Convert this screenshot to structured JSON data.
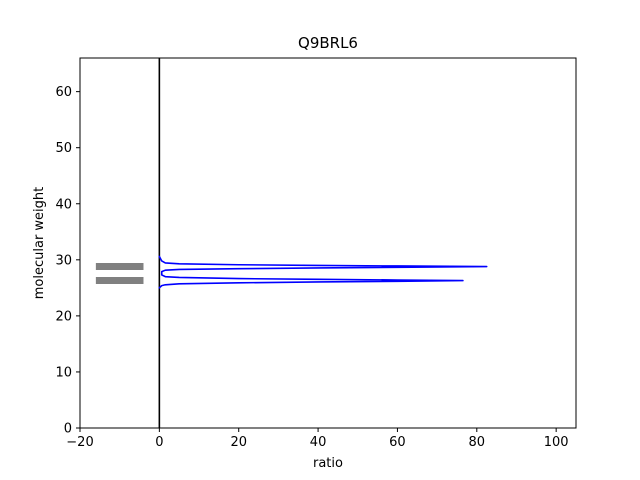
{
  "chart_data": {
    "type": "line",
    "title": "Q9BRL6",
    "xlabel": "ratio",
    "ylabel": "molecular weight",
    "xlim": [
      -20,
      105
    ],
    "ylim": [
      0,
      66
    ],
    "x_ticks": [
      -20,
      0,
      20,
      40,
      60,
      80,
      100
    ],
    "x_tick_labels": [
      "−20",
      "0",
      "20",
      "40",
      "60",
      "80",
      "100"
    ],
    "y_ticks": [
      0,
      10,
      20,
      30,
      40,
      50,
      60
    ],
    "y_tick_labels": [
      "0",
      "10",
      "20",
      "30",
      "40",
      "50",
      "60"
    ],
    "grid": false,
    "colors": {
      "series": "#0000ff",
      "bands": "#808080",
      "zero_line": "#000000"
    },
    "vertical_line": {
      "x": 0
    },
    "bands": [
      {
        "x_start": -16,
        "x_end": -4,
        "y": 28.8
      },
      {
        "x_start": -16,
        "x_end": -4,
        "y": 26.3
      }
    ],
    "series": [
      {
        "values": [
          [
            0,
            25
          ],
          [
            0.6,
            25.4
          ],
          [
            1.5,
            25.55
          ],
          [
            5,
            25.72
          ],
          [
            20,
            25.9
          ],
          [
            40,
            26.05
          ],
          [
            60,
            26.17
          ],
          [
            76.5,
            26.3
          ],
          [
            60,
            26.4
          ],
          [
            40,
            26.52
          ],
          [
            20,
            26.65
          ],
          [
            5,
            26.85
          ],
          [
            1.5,
            27.0
          ],
          [
            0.6,
            27.3
          ],
          [
            0.6,
            27.9
          ],
          [
            1.5,
            28.15
          ],
          [
            5,
            28.28
          ],
          [
            20,
            28.42
          ],
          [
            40,
            28.55
          ],
          [
            60,
            28.67
          ],
          [
            82.5,
            28.8
          ],
          [
            60,
            28.9
          ],
          [
            40,
            29.0
          ],
          [
            20,
            29.12
          ],
          [
            5,
            29.28
          ],
          [
            1.5,
            29.45
          ],
          [
            0.6,
            29.8
          ],
          [
            0,
            30.6
          ]
        ]
      }
    ]
  }
}
